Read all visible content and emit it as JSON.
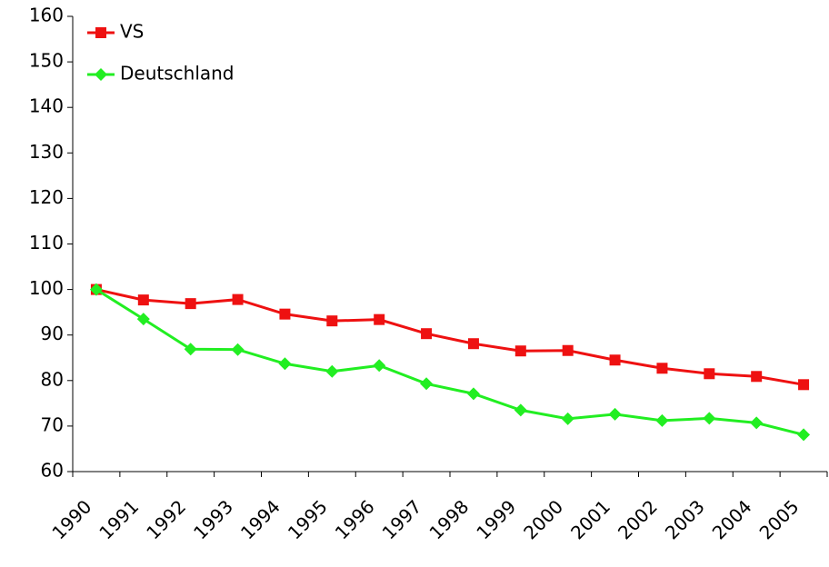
{
  "chart_data": {
    "type": "line",
    "categories": [
      "1990",
      "1991",
      "1992",
      "1993",
      "1994",
      "1995",
      "1996",
      "1997",
      "1998",
      "1999",
      "2000",
      "2001",
      "2002",
      "2003",
      "2004",
      "2005"
    ],
    "series": [
      {
        "name": "VS",
        "color": "#ee1111",
        "marker": "square",
        "values": [
          100,
          97.7,
          96.9,
          97.8,
          94.6,
          93.1,
          93.4,
          90.3,
          88.1,
          86.5,
          86.6,
          84.5,
          82.7,
          81.5,
          80.9,
          79.1
        ]
      },
      {
        "name": "Deutschland",
        "color": "#22ee22",
        "marker": "diamond",
        "values": [
          100,
          93.5,
          86.9,
          86.8,
          83.7,
          82,
          83.3,
          79.3,
          77.1,
          73.5,
          71.6,
          72.6,
          71.2,
          71.7,
          70.7,
          68.1
        ]
      }
    ],
    "ylim": [
      60,
      160
    ],
    "yticks": [
      60,
      70,
      80,
      90,
      100,
      110,
      120,
      130,
      140,
      150,
      160
    ],
    "legend": "upper left",
    "grid": false
  }
}
